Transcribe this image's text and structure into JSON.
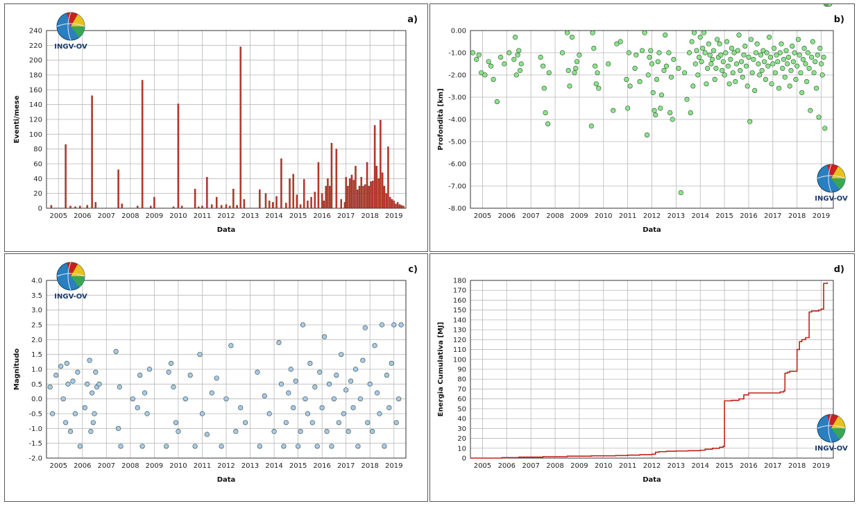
{
  "logo_text": "INGV-OV",
  "colors": {
    "bar": "#c0392b",
    "green": "#8de38d",
    "blue": "#a9c8ec",
    "line": "#c0221a",
    "grid": "#b8b8b8"
  },
  "chart_data": [
    {
      "id": "a",
      "panel_label": "a)",
      "type": "bar",
      "xlabel": "Data",
      "ylabel": "Eventi/mese",
      "xlim": [
        2004.5,
        2019.5
      ],
      "ylim": [
        0,
        240
      ],
      "xticks": [
        "2005",
        "2006",
        "2007",
        "2008",
        "2009",
        "2010",
        "2011",
        "2012",
        "2013",
        "2014",
        "2015",
        "2016",
        "2017",
        "2018",
        "2019"
      ],
      "yticks": [
        "0",
        "20",
        "40",
        "60",
        "80",
        "100",
        "120",
        "140",
        "160",
        "180",
        "200",
        "220",
        "240"
      ],
      "x": [
        2004.7,
        2005.3,
        2005.5,
        2005.7,
        2005.9,
        2006.2,
        2006.4,
        2006.55,
        2007.5,
        2007.65,
        2008.3,
        2008.5,
        2008.85,
        2009.0,
        2009.8,
        2010.0,
        2010.15,
        2010.7,
        2010.85,
        2011.0,
        2011.2,
        2011.4,
        2011.6,
        2011.8,
        2012.0,
        2012.15,
        2012.3,
        2012.45,
        2012.6,
        2012.75,
        2013.4,
        2013.65,
        2013.8,
        2013.95,
        2014.1,
        2014.3,
        2014.5,
        2014.65,
        2014.8,
        2014.95,
        2015.1,
        2015.25,
        2015.4,
        2015.55,
        2015.7,
        2015.85,
        2016.0,
        2016.08,
        2016.16,
        2016.24,
        2016.32,
        2016.4,
        2016.6,
        2016.8,
        2016.95,
        2017.0,
        2017.08,
        2017.16,
        2017.24,
        2017.32,
        2017.4,
        2017.48,
        2017.56,
        2017.64,
        2017.72,
        2017.8,
        2017.88,
        2017.96,
        2018.04,
        2018.12,
        2018.2,
        2018.28,
        2018.36,
        2018.44,
        2018.52,
        2018.6,
        2018.68,
        2018.76,
        2018.84,
        2018.92,
        2019.0,
        2019.08,
        2019.16,
        2019.24,
        2019.32,
        2019.4
      ],
      "values": [
        4,
        86,
        3,
        2,
        3,
        4,
        152,
        8,
        52,
        6,
        3,
        173,
        3,
        15,
        2,
        141,
        3,
        26,
        2,
        3,
        42,
        5,
        15,
        4,
        5,
        3,
        26,
        4,
        218,
        12,
        25,
        20,
        10,
        8,
        16,
        67,
        7,
        40,
        46,
        18,
        5,
        39,
        10,
        15,
        22,
        62,
        20,
        10,
        30,
        40,
        30,
        88,
        80,
        12,
        8,
        42,
        30,
        40,
        45,
        38,
        57,
        25,
        30,
        42,
        30,
        32,
        62,
        30,
        36,
        37,
        112,
        57,
        40,
        119,
        48,
        30,
        20,
        83,
        15,
        12,
        10,
        6,
        8,
        5,
        4,
        3
      ],
      "bar_width": 0.06
    },
    {
      "id": "b",
      "panel_label": "b)",
      "type": "scatter",
      "xlabel": "Data",
      "ylabel": "Profondità [km]",
      "xlim": [
        2004.5,
        2019.5
      ],
      "ylim": [
        -8.0,
        0.0
      ],
      "xticks": [
        "2005",
        "2006",
        "2007",
        "2008",
        "2009",
        "2010",
        "2011",
        "2012",
        "2013",
        "2014",
        "2015",
        "2016",
        "2017",
        "2018",
        "2019"
      ],
      "yticks": [
        "-8.00",
        "-7.00",
        "-6.00",
        "-5.00",
        "-4.00",
        "-3.00",
        "-2.00",
        "-1.00",
        "0.00"
      ],
      "points_x": [
        2004.6,
        2004.75,
        2004.85,
        2004.95,
        2005.1,
        2005.25,
        2005.35,
        2005.45,
        2005.6,
        2005.75,
        2005.9,
        2006.1,
        2006.3,
        2006.35,
        2006.45,
        2006.5,
        2006.55,
        2006.6,
        2006.4,
        2007.4,
        2007.5,
        2007.55,
        2007.6,
        2007.7,
        2007.75,
        2008.3,
        2008.5,
        2008.55,
        2008.6,
        2008.7,
        2008.8,
        2008.85,
        2008.9,
        2009.0,
        2009.5,
        2009.55,
        2009.6,
        2009.65,
        2009.7,
        2009.75,
        2009.8,
        2010.2,
        2010.4,
        2010.55,
        2010.7,
        2010.95,
        2011.0,
        2011.05,
        2011.1,
        2011.3,
        2011.35,
        2011.5,
        2011.6,
        2011.7,
        2011.8,
        2011.85,
        2011.9,
        2011.95,
        2012.0,
        2012.05,
        2012.1,
        2012.15,
        2012.2,
        2012.25,
        2012.3,
        2012.35,
        2012.4,
        2012.5,
        2012.55,
        2012.6,
        2012.7,
        2012.75,
        2012.8,
        2012.85,
        2012.9,
        2013.1,
        2013.2,
        2013.35,
        2013.45,
        2013.55,
        2013.6,
        2013.65,
        2013.7,
        2013.75,
        2013.8,
        2013.85,
        2013.9,
        2013.95,
        2014.0,
        2014.05,
        2014.1,
        2014.15,
        2014.2,
        2014.25,
        2014.3,
        2014.35,
        2014.4,
        2014.45,
        2014.5,
        2014.55,
        2014.6,
        2014.65,
        2014.7,
        2014.75,
        2014.8,
        2014.85,
        2014.9,
        2014.95,
        2015.0,
        2015.05,
        2015.1,
        2015.15,
        2015.2,
        2015.25,
        2015.3,
        2015.35,
        2015.4,
        2015.45,
        2015.5,
        2015.55,
        2015.6,
        2015.65,
        2015.7,
        2015.75,
        2015.8,
        2015.85,
        2015.9,
        2015.95,
        2016.0,
        2016.05,
        2016.1,
        2016.15,
        2016.2,
        2016.25,
        2016.3,
        2016.35,
        2016.4,
        2016.45,
        2016.5,
        2016.55,
        2016.6,
        2016.65,
        2016.7,
        2016.75,
        2016.8,
        2016.85,
        2016.9,
        2016.95,
        2017.0,
        2017.05,
        2017.1,
        2017.15,
        2017.2,
        2017.25,
        2017.3,
        2017.35,
        2017.4,
        2017.45,
        2017.5,
        2017.55,
        2017.6,
        2017.65,
        2017.7,
        2017.75,
        2017.8,
        2017.85,
        2017.9,
        2017.95,
        2018.0,
        2018.05,
        2018.1,
        2018.15,
        2018.2,
        2018.25,
        2018.3,
        2018.35,
        2018.4,
        2018.45,
        2018.5,
        2018.55,
        2018.6,
        2018.65,
        2018.7,
        2018.75,
        2018.8,
        2018.85,
        2018.9,
        2018.95,
        2019.0,
        2019.05,
        2019.1,
        2019.15,
        2019.2,
        2019.25,
        2019.3,
        2019.35
      ],
      "points_y": [
        -1.0,
        -1.3,
        -1.1,
        -1.9,
        -2.0,
        -1.4,
        -1.6,
        -2.2,
        -3.2,
        -1.2,
        -1.5,
        -1.0,
        -1.3,
        -0.3,
        -1.1,
        -0.9,
        -1.8,
        -1.5,
        -2.0,
        -1.2,
        -1.6,
        -2.6,
        -3.7,
        -4.2,
        -1.9,
        -1.0,
        -0.1,
        -1.8,
        -2.5,
        -0.3,
        -1.9,
        -1.7,
        -1.4,
        -1.1,
        -4.3,
        -0.1,
        -0.8,
        -1.6,
        -2.4,
        -1.9,
        -2.6,
        -1.5,
        -3.6,
        -0.6,
        -0.5,
        -2.2,
        -3.5,
        -1.0,
        -2.5,
        -1.7,
        -1.1,
        -2.3,
        -0.9,
        -0.1,
        -4.7,
        -2.0,
        -1.2,
        -0.9,
        -1.5,
        -2.8,
        -3.6,
        -3.8,
        -2.2,
        -1.4,
        -1.0,
        -3.5,
        -2.9,
        -1.8,
        -0.2,
        -1.6,
        -1.0,
        -3.7,
        -2.1,
        -4.0,
        -1.3,
        -1.7,
        -7.3,
        -1.9,
        -3.1,
        -1.0,
        -3.7,
        -0.5,
        -2.5,
        -0.1,
        -1.5,
        -0.9,
        -2.0,
        -1.2,
        -0.3,
        -1.4,
        -0.8,
        -0.1,
        -1.0,
        -2.4,
        -1.7,
        -0.6,
        -1.1,
        -1.5,
        -1.3,
        -0.9,
        -2.2,
        -1.7,
        -0.4,
        -1.2,
        -0.6,
        -1.1,
        -1.8,
        -1.4,
        -2.0,
        -1.0,
        -0.5,
        -1.6,
        -2.4,
        -1.3,
        -0.8,
        -1.9,
        -1.0,
        -2.3,
        -1.5,
        -0.9,
        -0.2,
        -1.8,
        -1.4,
        -2.1,
        -1.1,
        -0.7,
        -1.6,
        -2.5,
        -1.2,
        -4.1,
        -0.4,
        -1.9,
        -1.3,
        -2.7,
        -1.0,
        -0.6,
        -1.5,
        -2.0,
        -1.1,
        -1.8,
        -0.9,
        -1.4,
        -2.2,
        -1.0,
        -1.6,
        -0.3,
        -1.2,
        -2.4,
        -1.5,
        -0.8,
        -1.9,
        -1.1,
        -1.4,
        -2.6,
        -1.0,
        -0.6,
        -1.7,
        -1.3,
        -2.1,
        -0.9,
        -1.5,
        -1.2,
        -2.5,
        -1.8,
        -0.7,
        -1.4,
        -1.0,
        -2.2,
        -1.6,
        -0.4,
        -1.1,
        -1.9,
        -2.8,
        -1.3,
        -0.8,
        -1.5,
        -2.3,
        -1.0,
        -1.7,
        -3.6,
        -1.2,
        -0.5,
        -1.9,
        -1.4,
        -2.6,
        -1.1,
        -3.9,
        -0.8,
        -1.5,
        -2.0,
        -1.2,
        -4.4
      ],
      "marker_color": "#8de38d"
    },
    {
      "id": "c",
      "panel_label": "c)",
      "type": "scatter",
      "xlabel": "Data",
      "ylabel": "Magnitudo",
      "xlim": [
        2004.5,
        2019.5
      ],
      "ylim": [
        -2.0,
        4.0
      ],
      "xticks": [
        "2005",
        "2006",
        "2007",
        "2008",
        "2009",
        "2010",
        "2011",
        "2012",
        "2013",
        "2014",
        "2015",
        "2016",
        "2017",
        "2018",
        "2019"
      ],
      "yticks": [
        "-2.0",
        "-1.5",
        "-1.0",
        "-0.5",
        "0.0",
        "0.5",
        "1.0",
        "1.5",
        "2.0",
        "2.5",
        "3.0",
        "3.5",
        "4.0"
      ],
      "points_x": [
        2004.65,
        2004.75,
        2004.9,
        2005.1,
        2005.2,
        2005.3,
        2005.35,
        2005.4,
        2005.5,
        2005.6,
        2005.7,
        2005.8,
        2005.9,
        2006.1,
        2006.2,
        2006.3,
        2006.35,
        2006.4,
        2006.45,
        2006.5,
        2006.55,
        2006.6,
        2006.7,
        2007.4,
        2007.5,
        2007.55,
        2007.6,
        2008.1,
        2008.3,
        2008.4,
        2008.5,
        2008.6,
        2008.7,
        2008.8,
        2009.5,
        2009.6,
        2009.7,
        2009.8,
        2009.9,
        2010.0,
        2010.3,
        2010.5,
        2010.7,
        2010.9,
        2011.0,
        2011.2,
        2011.4,
        2011.6,
        2011.8,
        2012.0,
        2012.2,
        2012.4,
        2012.6,
        2012.8,
        2013.3,
        2013.4,
        2013.6,
        2013.8,
        2014.0,
        2014.2,
        2014.3,
        2014.4,
        2014.5,
        2014.6,
        2014.7,
        2014.8,
        2014.9,
        2015.0,
        2015.1,
        2015.2,
        2015.3,
        2015.4,
        2015.5,
        2015.6,
        2015.7,
        2015.8,
        2015.9,
        2016.0,
        2016.1,
        2016.2,
        2016.3,
        2016.4,
        2016.5,
        2016.6,
        2016.7,
        2016.8,
        2016.9,
        2017.0,
        2017.1,
        2017.2,
        2017.3,
        2017.4,
        2017.5,
        2017.6,
        2017.7,
        2017.8,
        2017.9,
        2018.0,
        2018.1,
        2018.2,
        2018.3,
        2018.4,
        2018.5,
        2018.6,
        2018.7,
        2018.8,
        2018.9,
        2019.0,
        2019.1,
        2019.2,
        2019.3
      ],
      "points_y": [
        0.4,
        -0.5,
        0.8,
        1.1,
        0.0,
        -0.8,
        1.2,
        0.5,
        -1.1,
        0.6,
        -0.5,
        0.9,
        -1.6,
        -0.3,
        0.5,
        1.3,
        -1.1,
        0.2,
        -0.8,
        -0.5,
        0.9,
        0.4,
        0.5,
        1.6,
        -1.0,
        0.4,
        -1.6,
        0.0,
        -0.3,
        0.8,
        -1.6,
        0.2,
        -0.5,
        1.0,
        -1.6,
        0.9,
        1.2,
        0.4,
        -0.8,
        -1.1,
        0.0,
        0.8,
        -1.6,
        1.5,
        -0.5,
        -1.2,
        0.2,
        0.7,
        -1.6,
        0.0,
        1.8,
        -1.1,
        -0.3,
        -0.8,
        0.9,
        -1.6,
        0.1,
        -0.5,
        -1.1,
        1.9,
        0.5,
        -1.6,
        -0.8,
        0.2,
        1.0,
        -0.3,
        0.6,
        -1.6,
        -1.1,
        2.5,
        0.0,
        -0.5,
        1.2,
        -0.8,
        0.4,
        -1.6,
        0.9,
        -0.3,
        2.1,
        -1.1,
        0.5,
        -1.6,
        0.0,
        0.8,
        -0.8,
        1.5,
        -0.5,
        0.3,
        -1.1,
        0.6,
        -0.3,
        1.0,
        -1.6,
        0.0,
        1.3,
        2.4,
        -0.8,
        0.5,
        -1.1,
        1.8,
        0.2,
        -0.5,
        2.5,
        -1.6,
        0.8,
        -0.3,
        1.2,
        2.5,
        -0.8,
        0.0,
        2.5
      ],
      "marker_color": "#a9c8ec"
    },
    {
      "id": "d",
      "panel_label": "d)",
      "type": "line",
      "xlabel": "Data",
      "ylabel": "Energia Cumulativa [MJ]",
      "xlim": [
        2004.5,
        2019.5
      ],
      "ylim": [
        0,
        180
      ],
      "xticks": [
        "2005",
        "2006",
        "2007",
        "2008",
        "2009",
        "2010",
        "2011",
        "2012",
        "2013",
        "2014",
        "2015",
        "2016",
        "2017",
        "2018",
        "2019"
      ],
      "yticks": [
        "0",
        "10",
        "20",
        "30",
        "40",
        "50",
        "60",
        "70",
        "80",
        "90",
        "100",
        "110",
        "120",
        "130",
        "140",
        "150",
        "160",
        "170",
        "180"
      ],
      "x": [
        2004.5,
        2005.8,
        2006.5,
        2007.5,
        2008.5,
        2009.5,
        2010.5,
        2011.0,
        2011.5,
        2012.0,
        2012.15,
        2012.3,
        2012.6,
        2013.0,
        2013.5,
        2014.0,
        2014.2,
        2014.5,
        2014.8,
        2014.95,
        2015.0,
        2015.3,
        2015.6,
        2015.8,
        2016.0,
        2016.5,
        2017.0,
        2017.3,
        2017.45,
        2017.5,
        2017.6,
        2017.7,
        2017.9,
        2018.0,
        2018.1,
        2018.2,
        2018.35,
        2018.5,
        2018.6,
        2018.9,
        2019.0,
        2019.1,
        2019.25
      ],
      "y": [
        0,
        0.5,
        1,
        1.5,
        2,
        2.3,
        2.6,
        3,
        3.5,
        4,
        6,
        6.5,
        7,
        7.2,
        7.5,
        8,
        9,
        10,
        11,
        12,
        58,
        58.5,
        60,
        64,
        66,
        66,
        66,
        67,
        68,
        86,
        87,
        88,
        88,
        110,
        118,
        120,
        122,
        148,
        149,
        150,
        151,
        177,
        178
      ]
    }
  ]
}
